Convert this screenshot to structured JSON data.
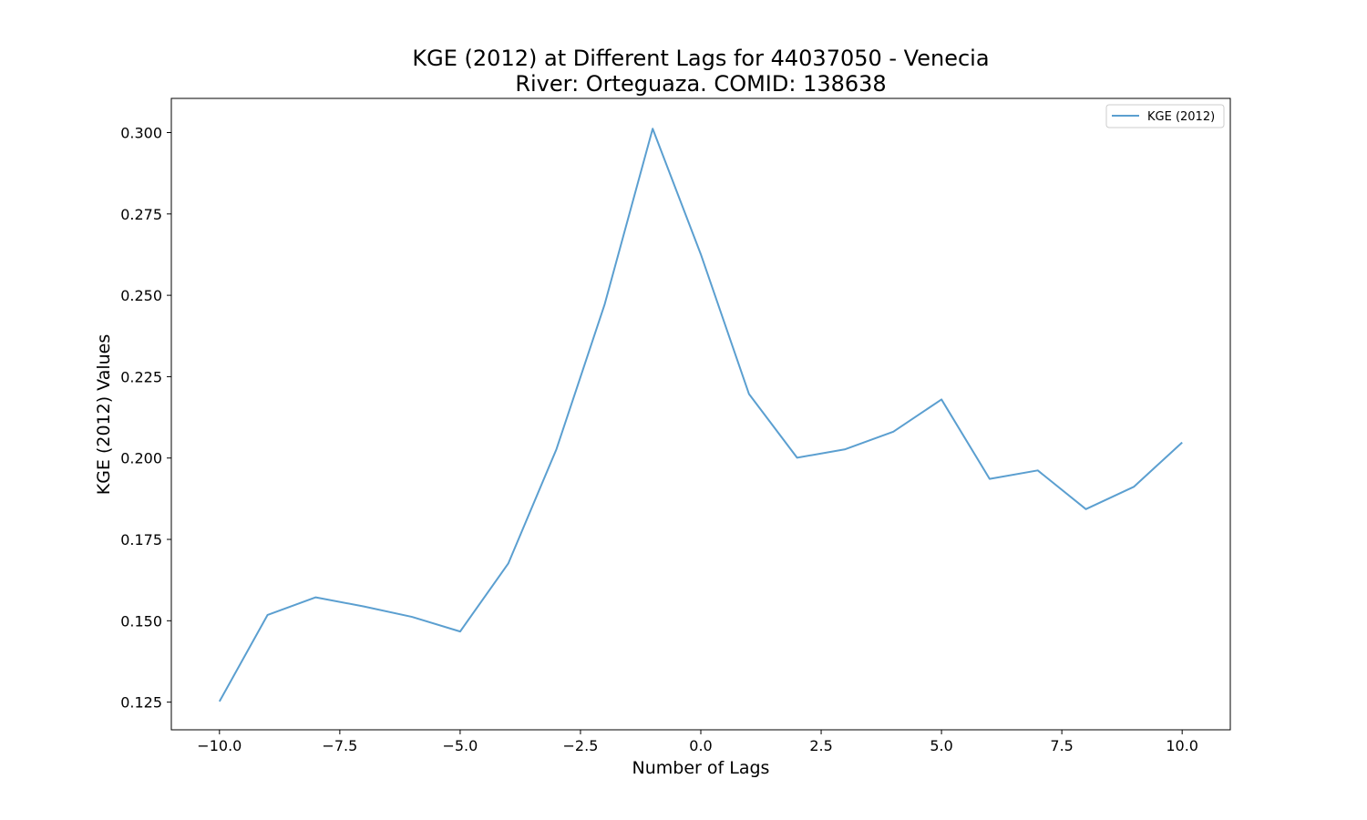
{
  "chart_data": {
    "type": "line",
    "title_line1": "KGE (2012) at Different Lags for 44037050 - Venecia",
    "title_line2": "River: Orteguaza. COMID: 138638",
    "xlabel": "Number of Lags",
    "ylabel": "KGE (2012) Values",
    "xlim": [
      -11.0,
      11.0
    ],
    "ylim": [
      0.1165,
      0.3105
    ],
    "x_ticks": [
      -10.0,
      -7.5,
      -5.0,
      -2.5,
      0.0,
      2.5,
      5.0,
      7.5,
      10.0
    ],
    "x_tick_labels": [
      "−10.0",
      "−7.5",
      "−5.0",
      "−2.5",
      "0.0",
      "2.5",
      "5.0",
      "7.5",
      "10.0"
    ],
    "y_ticks": [
      0.125,
      0.15,
      0.175,
      0.2,
      0.225,
      0.25,
      0.275,
      0.3
    ],
    "y_tick_labels": [
      "0.125",
      "0.150",
      "0.175",
      "0.200",
      "0.225",
      "0.250",
      "0.275",
      "0.300"
    ],
    "grid": false,
    "legend_position": "top-right",
    "series": [
      {
        "name": "KGE (2012)",
        "color": "#5b9fd0",
        "x": [
          -10,
          -9,
          -8,
          -7,
          -6,
          -5,
          -4,
          -3,
          -2,
          -1,
          0,
          1,
          2,
          3,
          4,
          5,
          6,
          7,
          8,
          9,
          10
        ],
        "y": [
          0.1252,
          0.1518,
          0.1572,
          0.1544,
          0.1512,
          0.1467,
          0.1676,
          0.2027,
          0.2471,
          0.3012,
          0.2626,
          0.2197,
          0.2001,
          0.2027,
          0.2081,
          0.218,
          0.1936,
          0.1962,
          0.1843,
          0.1912,
          0.2048
        ]
      }
    ]
  }
}
